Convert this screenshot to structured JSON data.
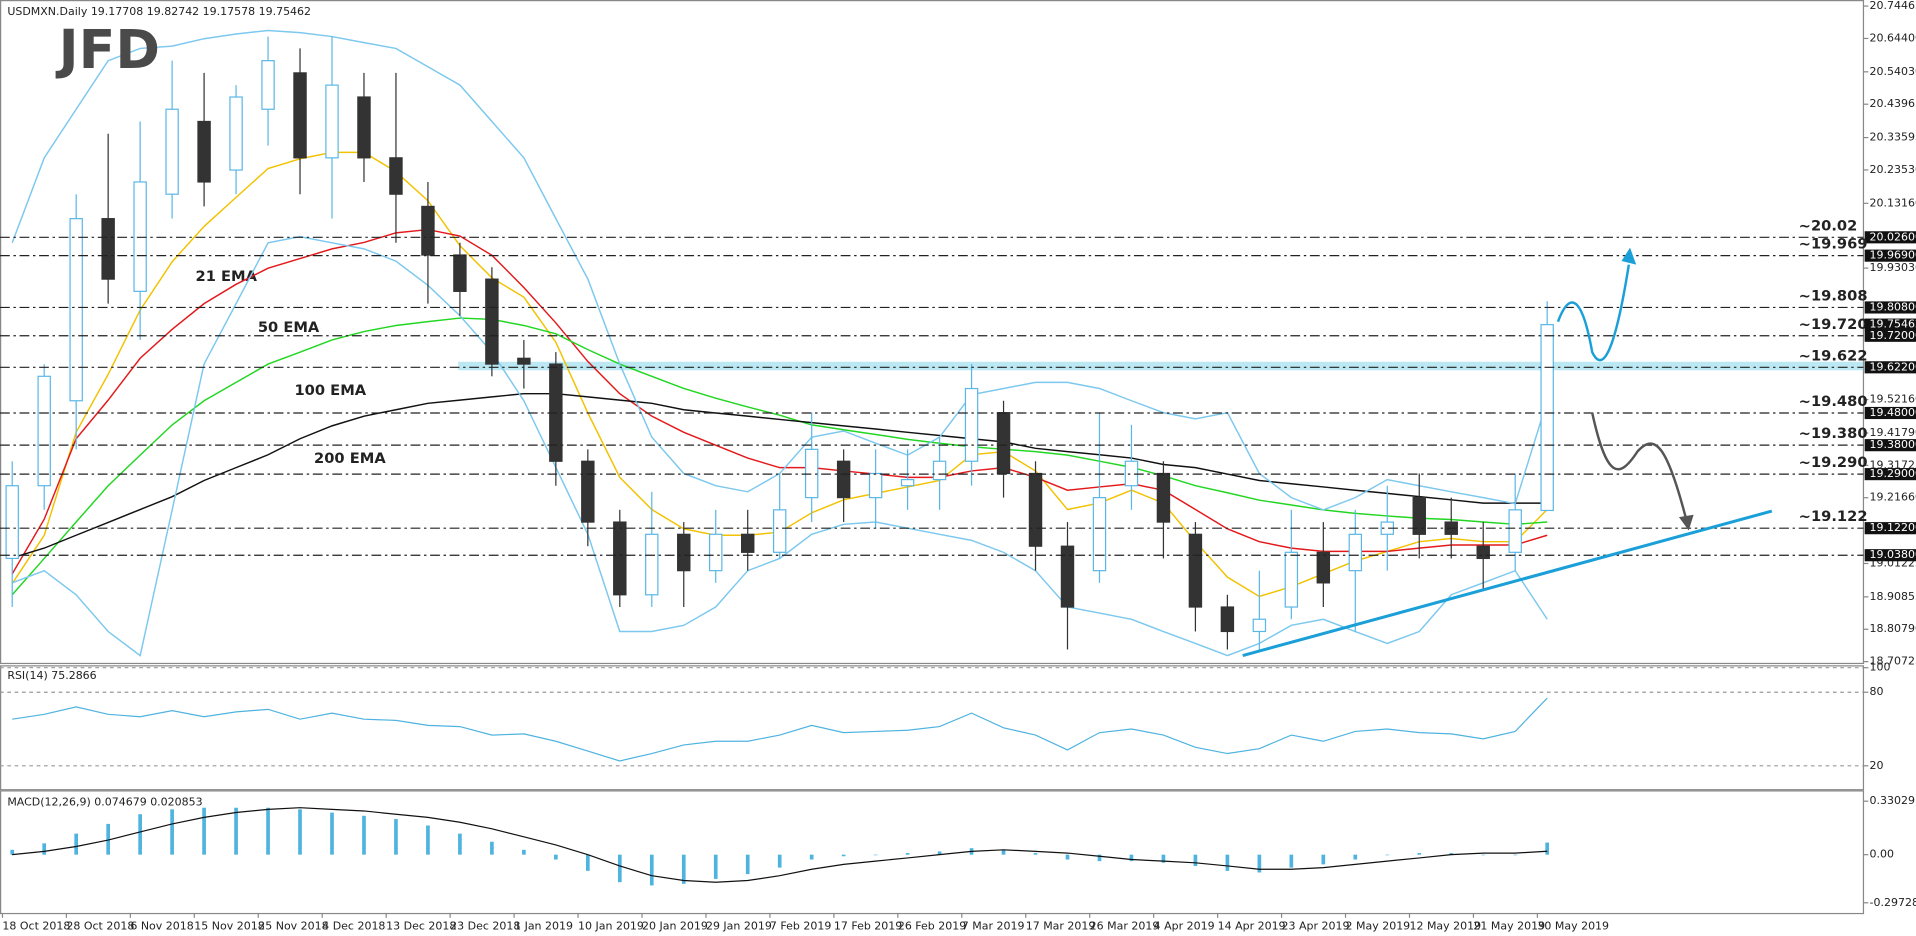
{
  "title": "USDMXN.Daily 19.17708 19.82742 19.17578 19.75462",
  "logo": "JFD",
  "chart_data": [
    {
      "type": "candlestick",
      "categories": [
        "18 Oct 2018",
        null,
        "28 Oct 2018",
        null,
        "6 Nov 2018",
        null,
        "15 Nov 2018",
        null,
        "25 Nov 2018",
        null,
        "4 Dec 2018",
        null,
        "13 Dec 2018",
        null,
        "23 Dec 2018",
        null,
        "1 Jan 2019",
        null,
        "10 Jan 2019",
        null,
        "20 Jan 2019",
        null,
        "29 Jan 2019",
        null,
        "7 Feb 2019",
        null,
        "17 Feb 2019",
        null,
        "26 Feb 2019",
        null,
        "7 Mar 2019",
        null,
        "17 Mar 2019",
        null,
        "26 Mar 2019",
        null,
        "4 Apr 2019",
        null,
        "14 Apr 2019",
        null,
        "23 Apr 2019",
        null,
        "2 May 2019",
        null,
        "12 May 2019",
        null,
        "21 May 2019",
        null,
        "30 May 2019"
      ],
      "open": [
        19.028,
        19.254,
        19.518,
        20.084,
        19.858,
        20.16,
        20.386,
        20.235,
        20.424,
        20.537,
        20.273,
        20.462,
        20.273,
        20.122,
        19.971,
        19.896,
        19.65,
        19.632,
        19.33,
        19.141,
        18.915,
        19.103,
        18.99,
        19.103,
        19.047,
        19.217,
        19.33,
        19.217,
        19.254,
        19.273,
        19.33,
        19.481,
        19.292,
        19.066,
        18.99,
        19.254,
        19.292,
        19.103,
        18.877,
        18.801,
        18.877,
        19.047,
        18.99,
        19.103,
        19.217,
        19.141,
        19.066,
        19.047,
        19.17708
      ],
      "high": [
        19.33,
        19.632,
        20.16,
        20.348,
        20.386,
        20.575,
        20.537,
        20.499,
        20.65,
        20.613,
        20.65,
        20.537,
        20.537,
        20.198,
        20.009,
        19.933,
        19.707,
        19.669,
        19.367,
        19.179,
        19.235,
        19.141,
        19.179,
        19.179,
        19.292,
        19.481,
        19.367,
        19.367,
        19.367,
        19.405,
        19.632,
        19.518,
        19.33,
        19.141,
        19.481,
        19.443,
        19.33,
        19.141,
        18.915,
        18.99,
        19.179,
        19.141,
        19.179,
        19.254,
        19.292,
        19.217,
        19.141,
        19.292,
        19.82742
      ],
      "low": [
        18.877,
        19.179,
        19.367,
        19.82,
        19.707,
        20.084,
        20.122,
        20.16,
        20.311,
        20.16,
        20.084,
        20.198,
        20.009,
        19.82,
        19.782,
        19.594,
        19.556,
        19.254,
        19.066,
        18.877,
        18.877,
        18.877,
        18.952,
        18.99,
        19.028,
        19.141,
        19.141,
        19.122,
        19.179,
        19.179,
        19.254,
        19.217,
        18.99,
        18.745,
        18.952,
        19.179,
        19.028,
        18.801,
        18.745,
        18.745,
        18.839,
        18.877,
        18.801,
        18.99,
        19.028,
        19.028,
        18.934,
        18.99,
        19.17578
      ],
      "close": [
        19.254,
        19.594,
        20.084,
        19.896,
        20.198,
        20.424,
        20.198,
        20.462,
        20.575,
        20.273,
        20.499,
        20.273,
        20.16,
        19.971,
        19.858,
        19.632,
        19.632,
        19.33,
        19.141,
        18.915,
        19.103,
        18.99,
        19.103,
        19.047,
        19.179,
        19.367,
        19.217,
        19.292,
        19.273,
        19.33,
        19.556,
        19.292,
        19.066,
        18.877,
        19.217,
        19.33,
        19.141,
        18.877,
        18.801,
        18.839,
        19.047,
        18.952,
        19.103,
        19.141,
        19.103,
        19.103,
        19.028,
        19.179,
        19.75462
      ],
      "up_color": "#5bb8e6",
      "down_color": "#333333",
      "series": [
        {
          "name": "21 EMA",
          "color": "#f2c200",
          "values": [
            18.95,
            19.1,
            19.42,
            19.6,
            19.8,
            19.95,
            20.06,
            20.15,
            20.24,
            20.27,
            20.29,
            20.29,
            20.23,
            20.14,
            20.0,
            19.9,
            19.84,
            19.7,
            19.48,
            19.28,
            19.18,
            19.12,
            19.1,
            19.1,
            19.11,
            19.17,
            19.21,
            19.23,
            19.25,
            19.27,
            19.35,
            19.36,
            19.3,
            19.18,
            19.2,
            19.24,
            19.2,
            19.08,
            18.97,
            18.91,
            18.94,
            18.98,
            19.02,
            19.05,
            19.08,
            19.09,
            19.08,
            19.08,
            19.18
          ]
        },
        {
          "name": "50 EMA",
          "color": "#e3191b",
          "values": [
            18.98,
            19.15,
            19.4,
            19.52,
            19.65,
            19.74,
            19.82,
            19.88,
            19.93,
            19.96,
            19.99,
            20.01,
            20.04,
            20.05,
            20.03,
            19.97,
            19.87,
            19.76,
            19.64,
            19.54,
            19.47,
            19.42,
            19.38,
            19.34,
            19.31,
            19.31,
            19.3,
            19.29,
            19.28,
            19.28,
            19.3,
            19.31,
            19.28,
            19.24,
            19.25,
            19.26,
            19.24,
            19.18,
            19.12,
            19.08,
            19.06,
            19.05,
            19.05,
            19.05,
            19.06,
            19.07,
            19.07,
            19.07,
            19.1
          ]
        },
        {
          "name": "100 EMA",
          "color": "#22d622",
          "values": [
            18.915,
            19.028,
            19.141,
            19.254,
            19.349,
            19.443,
            19.518,
            19.575,
            19.632,
            19.669,
            19.707,
            19.733,
            19.752,
            19.764,
            19.775,
            19.771,
            19.752,
            19.726,
            19.677,
            19.632,
            19.594,
            19.556,
            19.526,
            19.499,
            19.473,
            19.443,
            19.428,
            19.413,
            19.398,
            19.386,
            19.375,
            19.367,
            19.36,
            19.349,
            19.33,
            19.311,
            19.285,
            19.254,
            19.232,
            19.209,
            19.194,
            19.179,
            19.168,
            19.16,
            19.153,
            19.149,
            19.141,
            19.134,
            19.141
          ]
        },
        {
          "name": "200 EMA",
          "color": "#111111",
          "values": [
            19.03,
            19.06,
            19.1,
            19.14,
            19.18,
            19.22,
            19.27,
            19.31,
            19.35,
            19.4,
            19.44,
            19.47,
            19.49,
            19.51,
            19.52,
            19.53,
            19.54,
            19.54,
            19.53,
            19.52,
            19.51,
            19.49,
            19.48,
            19.47,
            19.46,
            19.45,
            19.44,
            19.43,
            19.42,
            19.41,
            19.4,
            19.39,
            19.37,
            19.36,
            19.35,
            19.34,
            19.32,
            19.31,
            19.29,
            19.27,
            19.26,
            19.25,
            19.24,
            19.23,
            19.22,
            19.21,
            19.2,
            19.2,
            19.2
          ]
        },
        {
          "color": "#7cc8ee",
          "values": [
            20.009,
            20.273,
            20.424,
            20.575,
            20.613,
            20.62,
            20.643,
            20.658,
            20.669,
            20.662,
            20.65,
            20.631,
            20.613,
            20.556,
            20.499,
            20.386,
            20.273,
            20.084,
            19.896,
            19.632,
            19.405,
            19.292,
            19.254,
            19.235,
            19.292,
            19.405,
            19.424,
            19.386,
            19.349,
            19.405,
            19.537,
            19.556,
            19.575,
            19.575,
            19.556,
            19.518,
            19.481,
            19.462,
            19.481,
            19.292,
            19.217,
            19.179,
            19.217,
            19.273,
            19.254,
            19.235,
            19.217,
            19.198,
            19.518
          ]
        },
        {
          "color": "#7cc8ee",
          "values": [
            18.952,
            18.99,
            18.915,
            18.801,
            18.726,
            19.179,
            19.632,
            19.82,
            20.009,
            20.028,
            20.009,
            19.99,
            19.952,
            19.877,
            19.782,
            19.669,
            19.518,
            19.311,
            19.103,
            18.801,
            18.801,
            18.82,
            18.877,
            18.99,
            19.028,
            19.103,
            19.134,
            19.141,
            19.122,
            19.103,
            19.084,
            19.047,
            18.99,
            18.877,
            18.858,
            18.839,
            18.801,
            18.764,
            18.726,
            18.764,
            18.82,
            18.839,
            18.801,
            18.764,
            18.801,
            18.915,
            18.952,
            18.99,
            18.839
          ]
        }
      ],
      "ylim": [
        18.70725,
        20.74465
      ],
      "yticks": [
        {
          "value": 20.74465,
          "label": "20.74465"
        },
        {
          "value": 20.644,
          "label": "20.64400"
        },
        {
          "value": 20.5403,
          "label": "20.54030"
        },
        {
          "value": 20.43965,
          "label": "20.43965"
        },
        {
          "value": 20.33595,
          "label": "20.33595"
        },
        {
          "value": 20.2353,
          "label": "20.23530"
        },
        {
          "value": 20.1316,
          "label": "20.13160"
        },
        {
          "value": 19.9303,
          "label": "19.93030"
        },
        {
          "value": 19.5216,
          "label": "19.52160"
        },
        {
          "value": 19.4179,
          "label": "19.41790"
        },
        {
          "value": 19.31725,
          "label": "19.31725"
        },
        {
          "value": 19.2166,
          "label": "19.21660"
        },
        {
          "value": 19.01225,
          "label": "19.01225"
        },
        {
          "value": 18.90855,
          "label": "18.90855"
        },
        {
          "value": 18.8079,
          "label": "18.80790"
        },
        {
          "value": 18.70725,
          "label": "18.70725"
        }
      ],
      "grid": false,
      "levels": [
        {
          "value": 20.026,
          "label": "~20.02",
          "tick": "20.02600",
          "color": "#29a8e0"
        },
        {
          "value": 19.969,
          "label": "~19.969",
          "tick": "19.96900",
          "color": "#29a8e0"
        },
        {
          "value": 19.808,
          "label": "~19.808",
          "tick": "19.80800",
          "color": "#29a8e0"
        },
        {
          "value": 19.72,
          "label": "~19.720",
          "tick": "19.72000",
          "color": "#29a8e0"
        },
        {
          "value": 19.622,
          "label": "~19.622",
          "tick": "19.62200",
          "color": "#29a8e0"
        },
        {
          "value": 19.48,
          "label": "~19.480",
          "tick": "19.48000",
          "color": "#333333"
        },
        {
          "value": 19.38,
          "label": "~19.380",
          "tick": "19.38000",
          "color": "#333333"
        },
        {
          "value": 19.29,
          "label": "~19.290",
          "tick": "19.29000",
          "color": "#333333"
        },
        {
          "value": 19.122,
          "label": "~19.122",
          "tick": "19.12200",
          "color": "#333333"
        },
        {
          "value": 19.038,
          "tick": "19.03800"
        }
      ],
      "last_price": {
        "value": 19.75462,
        "label": "19.75462"
      }
    },
    {
      "type": "line",
      "title": "RSI(14) 75.2866",
      "series": [
        {
          "color": "#4fb3e0",
          "values": [
            58,
            62,
            68,
            62,
            60,
            65,
            60,
            64,
            66,
            58,
            63,
            58,
            57,
            53,
            52,
            45,
            46,
            40,
            32,
            24,
            30,
            37,
            40,
            40,
            45,
            53,
            47,
            48,
            49,
            52,
            63,
            51,
            45,
            33,
            47,
            50,
            45,
            35,
            30,
            34,
            45,
            40,
            48,
            50,
            47,
            46,
            42,
            48,
            75.2866
          ]
        }
      ],
      "ylim": [
        0,
        100
      ],
      "yticks": [
        100,
        80,
        20
      ],
      "grid": true
    },
    {
      "type": "macd",
      "title": "MACD(12,26,9) 0.074679 0.020853",
      "series": [
        {
          "type": "bar",
          "color": "#4fb3e0",
          "values": [
            0.03,
            0.07,
            0.13,
            0.19,
            0.25,
            0.28,
            0.29,
            0.29,
            0.29,
            0.28,
            0.26,
            0.24,
            0.22,
            0.18,
            0.13,
            0.08,
            0.03,
            -0.03,
            -0.1,
            -0.17,
            -0.19,
            -0.18,
            -0.15,
            -0.12,
            -0.08,
            -0.03,
            -0.01,
            0.0,
            0.01,
            0.02,
            0.04,
            0.03,
            0.01,
            -0.03,
            -0.04,
            -0.04,
            -0.05,
            -0.07,
            -0.1,
            -0.11,
            -0.08,
            -0.06,
            -0.03,
            0.0,
            0.01,
            0.01,
            0.0,
            0.0,
            0.074679
          ]
        },
        {
          "type": "line",
          "color": "#111111",
          "values": [
            0.0,
            0.02,
            0.05,
            0.09,
            0.14,
            0.19,
            0.23,
            0.26,
            0.28,
            0.29,
            0.28,
            0.27,
            0.25,
            0.23,
            0.2,
            0.16,
            0.11,
            0.06,
            0.0,
            -0.07,
            -0.13,
            -0.16,
            -0.17,
            -0.16,
            -0.13,
            -0.09,
            -0.06,
            -0.04,
            -0.02,
            0.0,
            0.02,
            0.03,
            0.02,
            0.01,
            -0.01,
            -0.03,
            -0.04,
            -0.05,
            -0.07,
            -0.09,
            -0.09,
            -0.08,
            -0.06,
            -0.04,
            -0.02,
            0.0,
            0.01,
            0.01,
            0.020853
          ]
        }
      ],
      "ylim": [
        -0.36,
        0.39
      ],
      "yticks": [
        0.330291,
        {
          "value": 0,
          "label": "0.00"
        },
        -0.297282
      ],
      "grid": false
    }
  ]
}
